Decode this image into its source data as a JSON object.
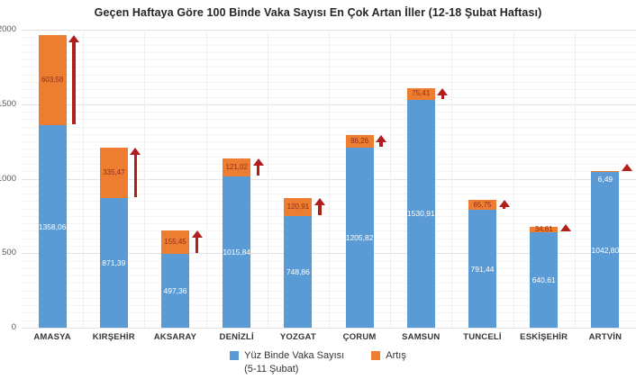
{
  "title": "Geçen Haftaya Göre 100 Binde Vaka Sayısı En Çok Artan İller (12-18 Şubat Haftası)",
  "colors": {
    "base_bar": "#5B9BD5",
    "increase_bar": "#ED7D31",
    "arrow": "#B01F1C",
    "base_label_text": "#ffffff",
    "increase_label_text": "#8F2E20",
    "grid_minor": "#f4f4f4",
    "grid_major": "#e3e3e3",
    "grid_vertical": "#f0f0f0",
    "axis_text": "#595959"
  },
  "chart_data": {
    "type": "bar",
    "stacked": true,
    "title": "Geçen Haftaya Göre 100 Binde Vaka Sayısı En Çok Artan İller (12-18 Şubat Haftası)",
    "categories": [
      "AMASYA",
      "KIRŞEHİR",
      "AKSARAY",
      "DENİZLİ",
      "YOZGAT",
      "ÇORUM",
      "SAMSUN",
      "TUNCELİ",
      "ESKİŞEHİR",
      "ARTVİN"
    ],
    "series": [
      {
        "name": "Yüz Binde Vaka Sayısı (5-11 Şubat)",
        "color": "#5B9BD5",
        "values": [
          1358.06,
          871.39,
          497.36,
          1015.84,
          748.86,
          1205.82,
          1530.91,
          791.44,
          640.61,
          1042.8
        ],
        "labels": [
          "1358,06",
          "871,39",
          "497,36",
          "1015,84",
          "748,86",
          "1205,82",
          "1530,91",
          "791,44",
          "640,61",
          "1042,80"
        ]
      },
      {
        "name": "Artış",
        "color": "#ED7D31",
        "values": [
          603.58,
          335.47,
          155.45,
          121.02,
          120.91,
          86.26,
          75.41,
          65.75,
          34.61,
          6.49
        ],
        "labels": [
          "603,58",
          "335,47",
          "155,45",
          "121,02",
          "120,91",
          "86,26",
          "75,41",
          "65,75",
          "34,61",
          "6,49"
        ]
      }
    ],
    "xlabel": "",
    "ylabel": "",
    "ylim": [
      0,
      2000
    ],
    "yticks": [
      0,
      500,
      1000,
      1500,
      2000
    ],
    "ytick_labels": [
      "0",
      "500",
      "1000",
      "1500",
      "2000"
    ],
    "grid": "horizontal minor every 50 and major every 500, faint vertical category separators",
    "legend_position": "bottom",
    "annotations": "dark red upward arrow beside each bar, arrow length equals increase segment"
  },
  "legend": {
    "items": [
      {
        "label": "Yüz Binde Vaka Sayısı",
        "sublabel": "(5-11 Şubat)",
        "color": "#5B9BD5"
      },
      {
        "label": "Artış",
        "sublabel": "",
        "color": "#ED7D31"
      }
    ]
  }
}
